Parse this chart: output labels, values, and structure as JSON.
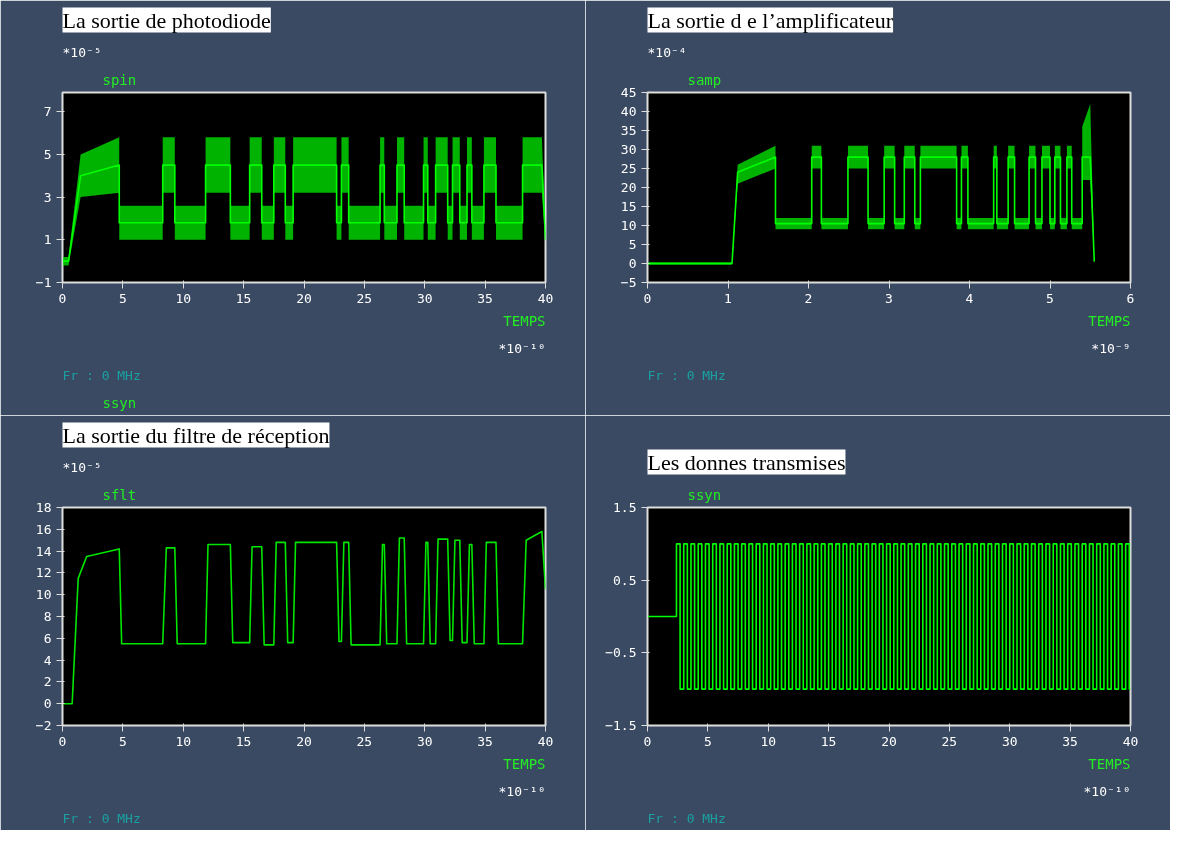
{
  "chart_data": [
    {
      "type": "line",
      "title": "La sortie de photodiode",
      "ylabel": "spin",
      "xlabel": "TEMPS",
      "annotations": [
        "*10⁻⁵",
        "*10⁻¹⁰",
        "Fr : 0 MHz",
        "ssyn"
      ],
      "xlim": [
        0,
        40
      ],
      "ylim": [
        -1,
        7.9
      ],
      "xticks": [
        0,
        5,
        10,
        15,
        20,
        25,
        30,
        35,
        40
      ],
      "yticks": [
        -1,
        1,
        3,
        5,
        7
      ],
      "series": [
        {
          "color": "#00ff00",
          "x": [
            0,
            0.5,
            1.5,
            4.7,
            4.7,
            8.3,
            8.3,
            9.3,
            9.3,
            11.85,
            11.85,
            13.9,
            13.9,
            15.5,
            15.5,
            16.5,
            16.5,
            17.5,
            17.5,
            18.45,
            18.45,
            19.1,
            19.1,
            22.7,
            22.7,
            23.1,
            23.1,
            23.7,
            23.7,
            26.3,
            26.3,
            26.65,
            26.65,
            27.7,
            27.7,
            28.3,
            28.3,
            29.9,
            29.9,
            30.25,
            30.25,
            30.9,
            30.9,
            31.9,
            31.9,
            32.3,
            32.3,
            32.9,
            32.9,
            33.5,
            33.5,
            33.9,
            33.9,
            34.9,
            34.9,
            35.9,
            35.9,
            38.1,
            38.1,
            39.7,
            40
          ],
          "values": [
            0,
            0,
            4,
            4.5,
            1.8,
            1.8,
            4.5,
            4.5,
            1.8,
            1.8,
            4.5,
            4.5,
            1.8,
            1.8,
            4.5,
            4.5,
            1.8,
            1.8,
            4.5,
            4.5,
            1.8,
            1.8,
            4.5,
            4.5,
            1.8,
            1.8,
            4.5,
            4.5,
            1.8,
            1.8,
            4.5,
            4.5,
            1.8,
            1.8,
            4.5,
            4.5,
            1.8,
            1.8,
            4.5,
            4.5,
            1.8,
            1.8,
            4.5,
            4.5,
            1.8,
            1.8,
            4.5,
            4.5,
            1.8,
            1.8,
            4.5,
            4.5,
            1.8,
            1.8,
            4.5,
            4.5,
            1.8,
            1.8,
            4.5,
            4.5,
            1.0
          ],
          "lower": [
            -0.2,
            -0.2,
            3,
            3.2,
            1,
            1,
            3.2,
            3.2,
            1,
            1,
            3.2,
            3.2,
            1,
            1,
            3.2,
            3.2,
            1,
            1,
            3.2,
            3.2,
            1,
            1,
            3.2,
            3.2,
            1,
            1,
            3.2,
            3.2,
            1,
            1,
            3.2,
            3.2,
            1,
            1,
            3.2,
            3.2,
            1,
            1,
            3.2,
            3.2,
            1,
            1,
            3.2,
            3.2,
            1,
            1,
            3.2,
            3.2,
            1,
            1,
            3.2,
            3.2,
            1,
            1,
            3.2,
            3.2,
            1,
            1,
            3.2,
            3.2,
            0.8
          ],
          "upper": [
            0.2,
            0.2,
            5,
            5.8,
            2.6,
            2.6,
            5.8,
            5.8,
            2.6,
            2.6,
            5.8,
            5.8,
            2.6,
            2.6,
            5.8,
            5.8,
            2.6,
            2.6,
            5.8,
            5.8,
            2.6,
            2.6,
            5.8,
            5.8,
            2.6,
            2.6,
            5.8,
            5.8,
            2.6,
            2.6,
            5.8,
            5.8,
            2.6,
            2.6,
            5.8,
            5.8,
            2.6,
            2.6,
            5.8,
            5.8,
            2.6,
            2.6,
            5.8,
            5.8,
            2.6,
            2.6,
            5.8,
            5.8,
            2.6,
            2.6,
            5.8,
            5.8,
            2.6,
            2.6,
            5.8,
            5.8,
            2.6,
            2.6,
            5.8,
            5.8,
            1.2
          ]
        }
      ]
    },
    {
      "type": "line",
      "title": "La sortie d e l’amplificateur",
      "ylabel": "samp",
      "xlabel": "TEMPS",
      "annotations": [
        "*10⁻⁴",
        "*10⁻⁹",
        "Fr : 0 MHz"
      ],
      "xlim": [
        0,
        6
      ],
      "ylim": [
        -5,
        45
      ],
      "xticks": [
        0,
        1,
        2,
        3,
        4,
        5,
        6
      ],
      "yticks": [
        -5,
        0,
        5,
        10,
        15,
        20,
        25,
        30,
        35,
        40,
        45
      ],
      "series": [
        {
          "color": "#00ff00",
          "x": [
            0,
            1.05,
            1.12,
            1.59,
            1.59,
            2.04,
            2.04,
            2.16,
            2.16,
            2.49,
            2.49,
            2.74,
            2.74,
            2.94,
            2.94,
            3.07,
            3.07,
            3.19,
            3.19,
            3.32,
            3.32,
            3.39,
            3.39,
            3.84,
            3.84,
            3.9,
            3.9,
            3.98,
            3.98,
            4.3,
            4.3,
            4.34,
            4.34,
            4.48,
            4.48,
            4.56,
            4.56,
            4.74,
            4.74,
            4.82,
            4.82,
            4.9,
            4.9,
            5.0,
            5.0,
            5.06,
            5.06,
            5.13,
            5.13,
            5.21,
            5.21,
            5.27,
            5.27,
            5.4,
            5.4,
            5.5,
            5.55
          ],
          "values": [
            0,
            0,
            24,
            28,
            10.5,
            10.5,
            28,
            28,
            10.5,
            10.5,
            28,
            28,
            10.5,
            10.5,
            28,
            28,
            10.5,
            10.5,
            28,
            28,
            10.5,
            10.5,
            28,
            28,
            10.5,
            10.5,
            28,
            28,
            10.5,
            10.5,
            28,
            28,
            10.5,
            10.5,
            28,
            28,
            10.5,
            10.5,
            28,
            28,
            10.5,
            10.5,
            28,
            28,
            10.5,
            10.5,
            28,
            28,
            10.5,
            10.5,
            28,
            28,
            10.5,
            10.5,
            28,
            28,
            0.5
          ],
          "lower": [
            -0.3,
            -0.3,
            21,
            25,
            9,
            9,
            25,
            25,
            9,
            9,
            25,
            25,
            9,
            9,
            25,
            25,
            9,
            9,
            25,
            25,
            9,
            9,
            25,
            25,
            9,
            9,
            25,
            25,
            9,
            9,
            25,
            25,
            9,
            9,
            25,
            25,
            9,
            9,
            25,
            25,
            9,
            9,
            25,
            25,
            9,
            9,
            25,
            25,
            9,
            9,
            25,
            25,
            9,
            9,
            22,
            22,
            0.3
          ],
          "upper": [
            0.3,
            0.3,
            26,
            31,
            12,
            12,
            31,
            31,
            12,
            12,
            31,
            31,
            12,
            12,
            31,
            31,
            12,
            12,
            31,
            31,
            12,
            12,
            31,
            31,
            12,
            12,
            31,
            31,
            12,
            12,
            31,
            31,
            12,
            12,
            31,
            31,
            12,
            12,
            31,
            31,
            12,
            12,
            31,
            31,
            12,
            12,
            31,
            31,
            12,
            12,
            31,
            31,
            12,
            12,
            36,
            42,
            0.7
          ]
        }
      ]
    },
    {
      "type": "line",
      "title": "La sortie du filtre de réception",
      "ylabel": "sflt",
      "xlabel": "TEMPS",
      "annotations": [
        "*10⁻⁵",
        "*10⁻¹⁰",
        "Fr : 0 MHz"
      ],
      "xlim": [
        0,
        40
      ],
      "ylim": [
        -2,
        18
      ],
      "xticks": [
        0,
        5,
        10,
        15,
        20,
        25,
        30,
        35,
        40
      ],
      "yticks": [
        -2,
        0,
        2,
        4,
        6,
        8,
        10,
        12,
        14,
        16,
        18
      ],
      "series": [
        {
          "color": "#00e600",
          "x": [
            0,
            0.8,
            1.3,
            2,
            4.7,
            4.9,
            8.3,
            8.6,
            9.3,
            9.5,
            11.85,
            12.05,
            13.9,
            14.1,
            15.5,
            15.7,
            16.5,
            16.7,
            17.5,
            17.7,
            18.45,
            18.65,
            19.1,
            19.3,
            22.7,
            22.9,
            23.1,
            23.3,
            23.7,
            23.9,
            26.3,
            26.5,
            26.65,
            26.85,
            27.7,
            27.9,
            28.3,
            28.5,
            29.9,
            30.1,
            30.25,
            30.45,
            30.9,
            31.1,
            31.9,
            32.1,
            32.3,
            32.5,
            32.9,
            33.1,
            33.5,
            33.7,
            33.9,
            34.1,
            34.9,
            35.1,
            35.9,
            36.1,
            38.1,
            38.4,
            39.7,
            40
          ],
          "values": [
            0,
            0,
            11.5,
            13.5,
            14.2,
            5.5,
            5.5,
            14.3,
            14.3,
            5.5,
            5.5,
            14.6,
            14.6,
            5.6,
            5.6,
            14.4,
            14.4,
            5.4,
            5.4,
            14.8,
            14.8,
            5.6,
            5.6,
            14.8,
            14.8,
            5.7,
            5.7,
            14.8,
            14.8,
            5.4,
            5.4,
            14.6,
            14.6,
            5.5,
            5.5,
            15.2,
            15.2,
            5.5,
            5.5,
            14.8,
            14.8,
            5.5,
            5.5,
            15.1,
            15.1,
            5.8,
            5.8,
            15,
            15,
            5.6,
            5.6,
            14.6,
            14.6,
            5.5,
            5.5,
            14.8,
            14.8,
            5.5,
            5.5,
            15,
            15.8,
            10.5
          ]
        }
      ]
    },
    {
      "type": "step",
      "title": "Les donnes transmises",
      "ylabel": "ssyn",
      "xlabel": "TEMPS",
      "annotations": [
        "*10⁻¹⁰",
        "Fr : 0 MHz"
      ],
      "xlim": [
        0,
        40
      ],
      "ylim": [
        -1.5,
        1.5
      ],
      "xticks": [
        0,
        5,
        10,
        15,
        20,
        25,
        30,
        35,
        40
      ],
      "yticks": [
        -1.5,
        -0.5,
        0.5,
        1.5
      ],
      "series": [
        {
          "color": "#00ff00",
          "x": [
            0,
            2.4,
            2.7,
            3.0,
            3.3,
            3.6,
            3.9,
            4.2,
            4.5,
            4.8,
            5.1,
            5.4,
            5.7,
            6.0,
            6.3,
            6.6,
            6.9,
            7.2,
            7.5,
            7.8,
            8.1,
            8.4,
            8.7,
            9.0,
            9.3,
            9.6,
            9.9,
            10.2,
            10.5,
            10.8,
            11.1,
            11.4,
            11.7,
            12.0,
            12.3,
            12.6,
            12.9,
            13.2,
            13.5,
            13.8,
            14.1,
            14.4,
            14.7,
            15.0,
            15.3,
            15.6,
            15.9,
            16.2,
            16.5,
            16.8,
            17.1,
            17.4,
            17.7,
            18.0,
            18.3,
            18.6,
            18.9,
            19.2,
            19.5,
            19.8,
            20.1,
            20.4,
            20.7,
            21.0,
            21.3,
            21.6,
            21.9,
            22.2,
            22.5,
            22.8,
            23.1,
            23.4,
            23.7,
            24.0,
            24.3,
            24.6,
            24.9,
            25.2,
            25.5,
            25.8,
            26.1,
            26.4,
            26.7,
            27.0,
            27.3,
            27.6,
            27.9,
            28.2,
            28.5,
            28.8,
            29.1,
            29.4,
            29.7,
            30.0,
            30.3,
            30.6,
            30.9,
            31.2,
            31.5,
            31.8,
            32.1,
            32.4,
            32.7,
            33.0,
            33.3,
            33.6,
            33.9,
            34.2,
            34.5,
            34.8,
            35.1,
            35.4,
            35.7,
            36.0,
            36.3,
            36.6,
            36.9,
            37.2,
            37.5,
            37.8,
            38.1,
            38.4,
            38.7,
            39.0,
            39.3,
            39.6,
            39.9,
            40
          ],
          "values": [
            0,
            1,
            -1,
            1,
            -1,
            1,
            -1,
            1,
            -1,
            1,
            -1,
            1,
            -1,
            1,
            -1,
            1,
            -1,
            1,
            -1,
            1,
            -1,
            1,
            -1,
            1,
            -1,
            1,
            -1,
            1,
            -1,
            1,
            -1,
            1,
            -1,
            1,
            -1,
            1,
            -1,
            1,
            -1,
            1,
            -1,
            1,
            -1,
            1,
            -1,
            1,
            -1,
            1,
            -1,
            1,
            -1,
            1,
            -1,
            1,
            -1,
            1,
            -1,
            1,
            -1,
            1,
            -1,
            1,
            -1,
            1,
            -1,
            1,
            -1,
            1,
            -1,
            1,
            -1,
            1,
            -1,
            1,
            -1,
            1,
            -1,
            1,
            -1,
            1,
            -1,
            1,
            -1,
            1,
            -1,
            1,
            -1,
            1,
            -1,
            1,
            -1,
            1,
            -1,
            1,
            -1,
            1,
            -1,
            1,
            -1,
            1,
            -1,
            1,
            -1,
            1,
            -1,
            1,
            -1,
            1,
            -1,
            1,
            -1,
            1,
            -1,
            1,
            -1,
            1,
            -1,
            1,
            -1,
            1,
            -1,
            1,
            -1,
            1,
            -1,
            1,
            -1,
            -1
          ]
        }
      ]
    }
  ]
}
